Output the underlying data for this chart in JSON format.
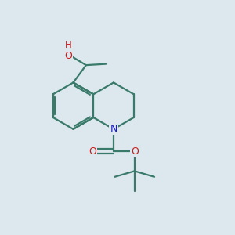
{
  "bg_color": "#dce8ee",
  "bond_color": "#3a7a6a",
  "N_color": "#1a1acc",
  "O_color": "#cc1a1a",
  "lw": 1.6,
  "fig_w": 3.0,
  "fig_h": 3.0,
  "dpi": 100,
  "BL": 1.0,
  "BCX": 3.1,
  "BCY": 5.5,
  "xlim": [
    0,
    10
  ],
  "ylim": [
    0,
    10
  ]
}
